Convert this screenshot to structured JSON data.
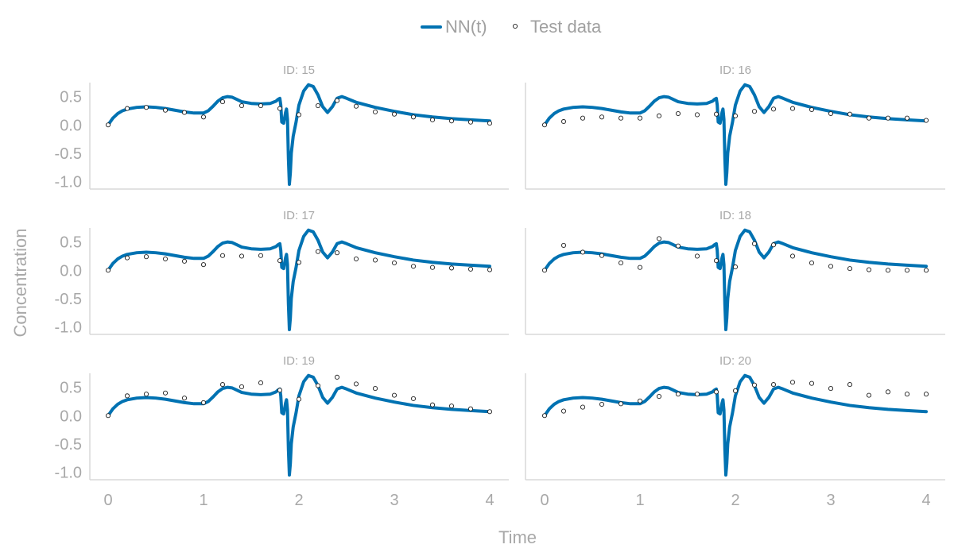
{
  "colors": {
    "nn_line": "#0072b2",
    "text": "#a8a8a8",
    "spine": "#d8d8d8"
  },
  "chart_data": {
    "type": "line",
    "xlabel": "Time",
    "ylabel": "Concentration",
    "xlim": [
      0,
      4
    ],
    "ylim": [
      -1.05,
      0.72
    ],
    "xticks": [
      0,
      1,
      2,
      3,
      4
    ],
    "yticks": [
      0.5,
      0.0,
      -0.5,
      -1.0
    ],
    "ytick_labels": [
      "0.5",
      "0.0",
      "-0.5",
      "-1.0"
    ],
    "legend": {
      "placement": "top-center",
      "entries": [
        "NN(t)",
        "Test data"
      ]
    },
    "grid": false,
    "nn_curve": {
      "name": "NN(t)",
      "x": [
        0,
        0.05,
        0.1,
        0.15,
        0.2,
        0.3,
        0.4,
        0.5,
        0.6,
        0.7,
        0.8,
        0.9,
        1.0,
        1.05,
        1.1,
        1.15,
        1.2,
        1.25,
        1.3,
        1.35,
        1.4,
        1.5,
        1.6,
        1.7,
        1.76,
        1.78,
        1.8,
        1.81,
        1.82,
        1.84,
        1.86,
        1.87,
        1.88,
        1.89,
        1.9,
        1.91,
        1.92,
        1.94,
        1.97,
        2.0,
        2.05,
        2.1,
        2.15,
        2.2,
        2.25,
        2.3,
        2.35,
        2.4,
        2.45,
        2.5,
        2.6,
        2.8,
        3.0,
        3.2,
        3.4,
        3.6,
        3.8,
        4.0
      ],
      "y": [
        0.0,
        0.12,
        0.2,
        0.25,
        0.28,
        0.31,
        0.32,
        0.31,
        0.29,
        0.26,
        0.23,
        0.21,
        0.21,
        0.25,
        0.33,
        0.42,
        0.48,
        0.5,
        0.49,
        0.45,
        0.41,
        0.38,
        0.37,
        0.38,
        0.42,
        0.45,
        0.47,
        0.35,
        0.05,
        0.03,
        0.22,
        0.28,
        0.1,
        -0.6,
        -1.05,
        -0.85,
        -0.5,
        -0.2,
        0.05,
        0.35,
        0.6,
        0.71,
        0.68,
        0.53,
        0.32,
        0.22,
        0.32,
        0.47,
        0.5,
        0.47,
        0.4,
        0.31,
        0.24,
        0.18,
        0.14,
        0.11,
        0.09,
        0.07
      ]
    },
    "panels": [
      {
        "title": "ID: 15",
        "test_data": {
          "x": [
            0,
            0.2,
            0.4,
            0.6,
            0.8,
            1.0,
            1.2,
            1.4,
            1.6,
            1.8,
            2.0,
            2.2,
            2.4,
            2.6,
            2.8,
            3.0,
            3.2,
            3.4,
            3.6,
            3.8,
            4.0
          ],
          "y": [
            0.0,
            0.29,
            0.31,
            0.26,
            0.22,
            0.14,
            0.41,
            0.34,
            0.34,
            0.29,
            0.18,
            0.34,
            0.43,
            0.33,
            0.23,
            0.19,
            0.14,
            0.09,
            0.07,
            0.05,
            0.03
          ]
        }
      },
      {
        "title": "ID: 16",
        "test_data": {
          "x": [
            0,
            0.2,
            0.4,
            0.6,
            0.8,
            1.0,
            1.2,
            1.4,
            1.6,
            1.8,
            2.0,
            2.2,
            2.4,
            2.6,
            2.8,
            3.0,
            3.2,
            3.4,
            3.6,
            3.8,
            4.0
          ],
          "y": [
            0.0,
            0.06,
            0.12,
            0.14,
            0.12,
            0.12,
            0.16,
            0.2,
            0.18,
            0.19,
            0.16,
            0.24,
            0.28,
            0.29,
            0.27,
            0.2,
            0.19,
            0.12,
            0.12,
            0.12,
            0.08
          ]
        }
      },
      {
        "title": "ID: 17",
        "test_data": {
          "x": [
            0,
            0.2,
            0.4,
            0.6,
            0.8,
            1.0,
            1.2,
            1.4,
            1.6,
            1.8,
            2.0,
            2.2,
            2.4,
            2.6,
            2.8,
            3.0,
            3.2,
            3.4,
            3.6,
            3.8,
            4.0
          ],
          "y": [
            0.0,
            0.22,
            0.24,
            0.2,
            0.16,
            0.1,
            0.26,
            0.25,
            0.26,
            0.17,
            0.14,
            0.33,
            0.31,
            0.2,
            0.18,
            0.13,
            0.07,
            0.05,
            0.04,
            0.02,
            0.01
          ]
        }
      },
      {
        "title": "ID: 18",
        "test_data": {
          "x": [
            0,
            0.2,
            0.4,
            0.6,
            0.8,
            1.0,
            1.2,
            1.4,
            1.6,
            1.8,
            2.0,
            2.2,
            2.4,
            2.6,
            2.8,
            3.0,
            3.2,
            3.4,
            3.6,
            3.8,
            4.0
          ],
          "y": [
            0.0,
            0.44,
            0.32,
            0.26,
            0.13,
            0.05,
            0.56,
            0.43,
            0.25,
            0.17,
            0.06,
            0.47,
            0.45,
            0.25,
            0.13,
            0.07,
            0.03,
            0.01,
            0.0,
            0.0,
            0.0
          ]
        }
      },
      {
        "title": "ID: 19",
        "test_data": {
          "x": [
            0,
            0.2,
            0.4,
            0.6,
            0.8,
            1.0,
            1.2,
            1.4,
            1.6,
            1.8,
            2.0,
            2.2,
            2.4,
            2.6,
            2.8,
            3.0,
            3.2,
            3.4,
            3.6,
            3.8,
            4.0
          ],
          "y": [
            0.0,
            0.35,
            0.38,
            0.4,
            0.31,
            0.23,
            0.55,
            0.51,
            0.58,
            0.45,
            0.29,
            0.53,
            0.68,
            0.56,
            0.48,
            0.36,
            0.3,
            0.19,
            0.17,
            0.12,
            0.07
          ]
        }
      },
      {
        "title": "ID: 20",
        "test_data": {
          "x": [
            0,
            0.2,
            0.4,
            0.6,
            0.8,
            1.0,
            1.2,
            1.4,
            1.6,
            1.8,
            2.0,
            2.2,
            2.4,
            2.6,
            2.8,
            3.0,
            3.2,
            3.4,
            3.6,
            3.8,
            4.0
          ],
          "y": [
            0.0,
            0.08,
            0.15,
            0.2,
            0.21,
            0.26,
            0.34,
            0.38,
            0.38,
            0.42,
            0.44,
            0.54,
            0.55,
            0.59,
            0.57,
            0.48,
            0.55,
            0.36,
            0.42,
            0.38,
            0.38
          ]
        }
      }
    ]
  }
}
